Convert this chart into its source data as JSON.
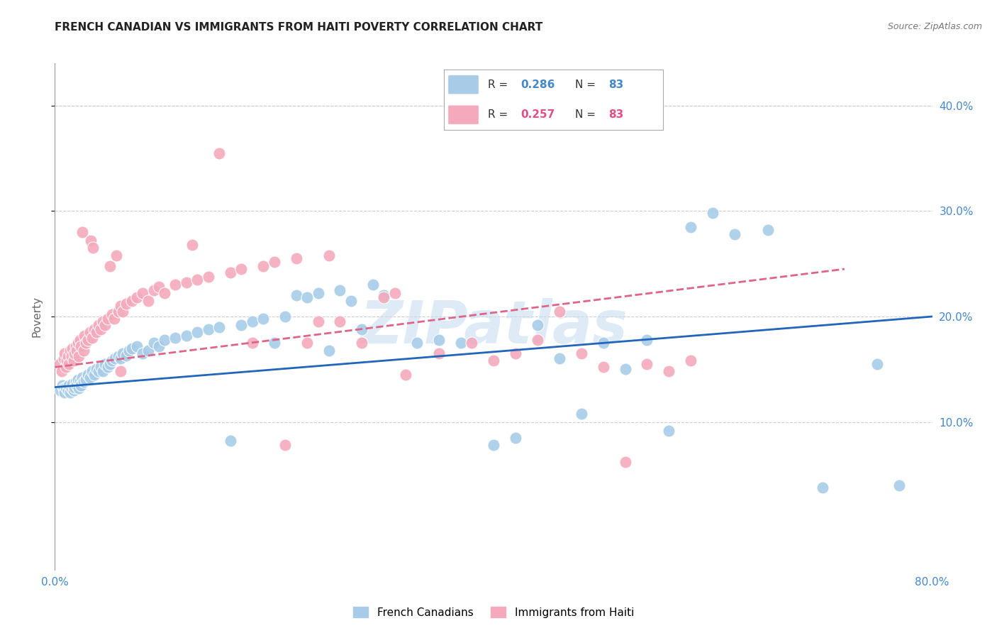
{
  "title": "FRENCH CANADIAN VS IMMIGRANTS FROM HAITI POVERTY CORRELATION CHART",
  "source": "Source: ZipAtlas.com",
  "ylabel": "Poverty",
  "ytick_labels": [
    "10.0%",
    "20.0%",
    "30.0%",
    "40.0%"
  ],
  "ytick_values": [
    0.1,
    0.2,
    0.3,
    0.4
  ],
  "xlim": [
    0.0,
    0.8
  ],
  "ylim": [
    -0.04,
    0.44
  ],
  "blue_color": "#a8cce8",
  "pink_color": "#f4aabc",
  "blue_line_color": "#2266bb",
  "pink_line_color": "#dd6688",
  "tick_color": "#4488cc",
  "watermark": "ZIPatlas",
  "blue_scatter": [
    [
      0.005,
      0.13
    ],
    [
      0.007,
      0.135
    ],
    [
      0.008,
      0.132
    ],
    [
      0.009,
      0.128
    ],
    [
      0.01,
      0.133
    ],
    [
      0.012,
      0.13
    ],
    [
      0.013,
      0.135
    ],
    [
      0.014,
      0.128
    ],
    [
      0.015,
      0.132
    ],
    [
      0.016,
      0.136
    ],
    [
      0.017,
      0.13
    ],
    [
      0.018,
      0.133
    ],
    [
      0.019,
      0.138
    ],
    [
      0.02,
      0.135
    ],
    [
      0.021,
      0.14
    ],
    [
      0.022,
      0.132
    ],
    [
      0.023,
      0.138
    ],
    [
      0.024,
      0.135
    ],
    [
      0.025,
      0.142
    ],
    [
      0.026,
      0.138
    ],
    [
      0.028,
      0.14
    ],
    [
      0.03,
      0.145
    ],
    [
      0.032,
      0.142
    ],
    [
      0.034,
      0.148
    ],
    [
      0.036,
      0.145
    ],
    [
      0.038,
      0.15
    ],
    [
      0.04,
      0.148
    ],
    [
      0.042,
      0.152
    ],
    [
      0.044,
      0.148
    ],
    [
      0.046,
      0.155
    ],
    [
      0.048,
      0.152
    ],
    [
      0.05,
      0.155
    ],
    [
      0.052,
      0.158
    ],
    [
      0.055,
      0.16
    ],
    [
      0.058,
      0.162
    ],
    [
      0.06,
      0.16
    ],
    [
      0.062,
      0.165
    ],
    [
      0.065,
      0.163
    ],
    [
      0.068,
      0.168
    ],
    [
      0.07,
      0.17
    ],
    [
      0.075,
      0.172
    ],
    [
      0.08,
      0.165
    ],
    [
      0.085,
      0.168
    ],
    [
      0.09,
      0.175
    ],
    [
      0.095,
      0.172
    ],
    [
      0.1,
      0.178
    ],
    [
      0.11,
      0.18
    ],
    [
      0.12,
      0.182
    ],
    [
      0.13,
      0.185
    ],
    [
      0.14,
      0.188
    ],
    [
      0.15,
      0.19
    ],
    [
      0.16,
      0.082
    ],
    [
      0.17,
      0.192
    ],
    [
      0.18,
      0.195
    ],
    [
      0.19,
      0.198
    ],
    [
      0.2,
      0.175
    ],
    [
      0.21,
      0.2
    ],
    [
      0.22,
      0.22
    ],
    [
      0.23,
      0.218
    ],
    [
      0.24,
      0.222
    ],
    [
      0.25,
      0.168
    ],
    [
      0.26,
      0.225
    ],
    [
      0.27,
      0.215
    ],
    [
      0.28,
      0.188
    ],
    [
      0.29,
      0.23
    ],
    [
      0.3,
      0.22
    ],
    [
      0.33,
      0.175
    ],
    [
      0.35,
      0.178
    ],
    [
      0.37,
      0.175
    ],
    [
      0.4,
      0.078
    ],
    [
      0.42,
      0.085
    ],
    [
      0.44,
      0.192
    ],
    [
      0.46,
      0.16
    ],
    [
      0.48,
      0.108
    ],
    [
      0.5,
      0.175
    ],
    [
      0.52,
      0.15
    ],
    [
      0.54,
      0.178
    ],
    [
      0.56,
      0.092
    ],
    [
      0.58,
      0.285
    ],
    [
      0.6,
      0.298
    ],
    [
      0.62,
      0.278
    ],
    [
      0.65,
      0.282
    ],
    [
      0.7,
      0.038
    ],
    [
      0.75,
      0.155
    ],
    [
      0.77,
      0.04
    ]
  ],
  "pink_scatter": [
    [
      0.004,
      0.155
    ],
    [
      0.006,
      0.148
    ],
    [
      0.008,
      0.16
    ],
    [
      0.009,
      0.165
    ],
    [
      0.01,
      0.152
    ],
    [
      0.011,
      0.158
    ],
    [
      0.012,
      0.162
    ],
    [
      0.013,
      0.155
    ],
    [
      0.014,
      0.168
    ],
    [
      0.015,
      0.162
    ],
    [
      0.016,
      0.17
    ],
    [
      0.017,
      0.158
    ],
    [
      0.018,
      0.165
    ],
    [
      0.019,
      0.172
    ],
    [
      0.02,
      0.168
    ],
    [
      0.021,
      0.175
    ],
    [
      0.022,
      0.162
    ],
    [
      0.023,
      0.178
    ],
    [
      0.024,
      0.172
    ],
    [
      0.025,
      0.28
    ],
    [
      0.026,
      0.168
    ],
    [
      0.027,
      0.182
    ],
    [
      0.028,
      0.175
    ],
    [
      0.03,
      0.178
    ],
    [
      0.032,
      0.185
    ],
    [
      0.033,
      0.272
    ],
    [
      0.034,
      0.18
    ],
    [
      0.035,
      0.265
    ],
    [
      0.036,
      0.188
    ],
    [
      0.038,
      0.185
    ],
    [
      0.04,
      0.192
    ],
    [
      0.042,
      0.188
    ],
    [
      0.044,
      0.195
    ],
    [
      0.046,
      0.192
    ],
    [
      0.048,
      0.198
    ],
    [
      0.05,
      0.248
    ],
    [
      0.052,
      0.202
    ],
    [
      0.054,
      0.198
    ],
    [
      0.056,
      0.258
    ],
    [
      0.058,
      0.205
    ],
    [
      0.06,
      0.21
    ],
    [
      0.062,
      0.205
    ],
    [
      0.065,
      0.212
    ],
    [
      0.07,
      0.215
    ],
    [
      0.075,
      0.218
    ],
    [
      0.08,
      0.222
    ],
    [
      0.085,
      0.215
    ],
    [
      0.09,
      0.225
    ],
    [
      0.095,
      0.228
    ],
    [
      0.1,
      0.222
    ],
    [
      0.11,
      0.23
    ],
    [
      0.12,
      0.232
    ],
    [
      0.125,
      0.268
    ],
    [
      0.13,
      0.235
    ],
    [
      0.14,
      0.238
    ],
    [
      0.15,
      0.355
    ],
    [
      0.16,
      0.242
    ],
    [
      0.17,
      0.245
    ],
    [
      0.18,
      0.175
    ],
    [
      0.19,
      0.248
    ],
    [
      0.2,
      0.252
    ],
    [
      0.21,
      0.078
    ],
    [
      0.22,
      0.255
    ],
    [
      0.23,
      0.175
    ],
    [
      0.24,
      0.195
    ],
    [
      0.25,
      0.258
    ],
    [
      0.26,
      0.195
    ],
    [
      0.28,
      0.175
    ],
    [
      0.3,
      0.218
    ],
    [
      0.31,
      0.222
    ],
    [
      0.32,
      0.145
    ],
    [
      0.35,
      0.165
    ],
    [
      0.38,
      0.175
    ],
    [
      0.4,
      0.158
    ],
    [
      0.42,
      0.165
    ],
    [
      0.44,
      0.178
    ],
    [
      0.46,
      0.205
    ],
    [
      0.48,
      0.165
    ],
    [
      0.5,
      0.152
    ],
    [
      0.52,
      0.062
    ],
    [
      0.54,
      0.155
    ],
    [
      0.56,
      0.148
    ],
    [
      0.58,
      0.158
    ],
    [
      0.06,
      0.148
    ]
  ],
  "blue_trendline": [
    [
      0.0,
      0.133
    ],
    [
      0.8,
      0.2
    ]
  ],
  "pink_trendline": [
    [
      0.0,
      0.152
    ],
    [
      0.72,
      0.245
    ]
  ],
  "background_color": "#ffffff",
  "grid_color": "#cccccc"
}
